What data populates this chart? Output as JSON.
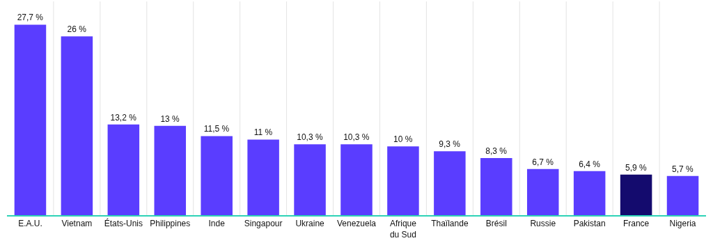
{
  "chart_data": {
    "type": "bar",
    "categories": [
      "E.A.U.",
      "Vietnam",
      "États-Unis",
      "Philippines",
      "Inde",
      "Singapour",
      "Ukraine",
      "Venezuela",
      "Afrique du Sud",
      "Thaïlande",
      "Brésil",
      "Russie",
      "Pakistan",
      "France",
      "Nigeria"
    ],
    "values": [
      27.7,
      26,
      13.2,
      13,
      11.5,
      11,
      10.3,
      10.3,
      10,
      9.3,
      8.3,
      6.7,
      6.4,
      5.9,
      5.7
    ],
    "value_labels": [
      "27,7 %",
      "26 %",
      "13,2 %",
      "13 %",
      "11,5 %",
      "11 %",
      "10,3 %",
      "10,3 %",
      "10 %",
      "9,3 %",
      "8,3 %",
      "6,7 %",
      "6,4 %",
      "5,9 %",
      "5,7 %"
    ],
    "colors": [
      "#5a3dff",
      "#5a3dff",
      "#5a3dff",
      "#5a3dff",
      "#5a3dff",
      "#5a3dff",
      "#5a3dff",
      "#5a3dff",
      "#5a3dff",
      "#5a3dff",
      "#5a3dff",
      "#5a3dff",
      "#5a3dff",
      "#140b6e",
      "#5a3dff"
    ],
    "grid": "x",
    "legend": false
  }
}
